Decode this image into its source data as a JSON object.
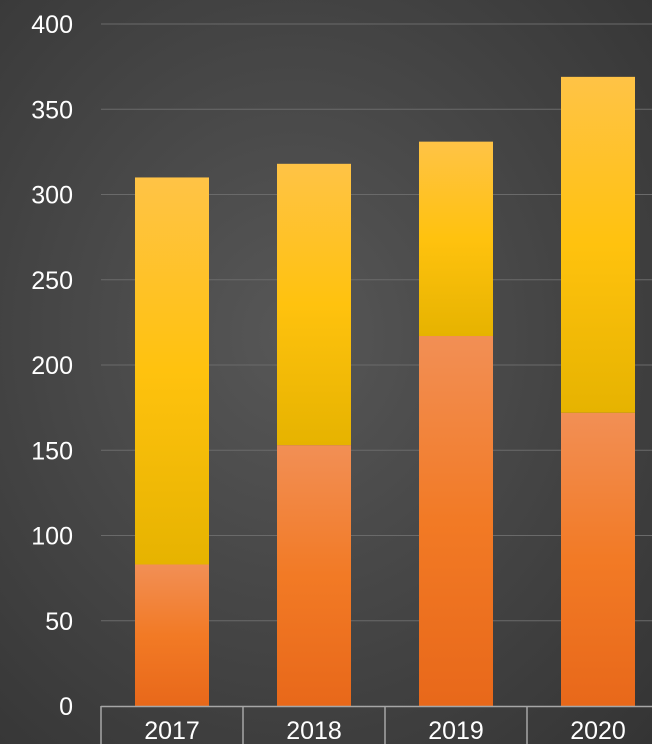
{
  "chart_data": {
    "type": "bar",
    "stacked": true,
    "categories": [
      "2017",
      "2018",
      "2019",
      "2020"
    ],
    "series": [
      {
        "values": [
          83,
          153,
          217,
          172
        ],
        "color": "#f07f2e"
      },
      {
        "values": [
          227,
          165,
          114,
          197
        ],
        "color": "#f5b82a"
      }
    ],
    "ylim": [
      0,
      400
    ],
    "yticks": [
      "0",
      "50",
      "100",
      "150",
      "200",
      "250",
      "300",
      "350",
      "400"
    ],
    "title": "",
    "xlabel": "",
    "ylabel": "",
    "grid": true,
    "legend": "none",
    "colors": {
      "background": "#474747",
      "gridline": "#6a6a6a",
      "axis": "#a6a6a6",
      "text": "#ffffff"
    }
  }
}
